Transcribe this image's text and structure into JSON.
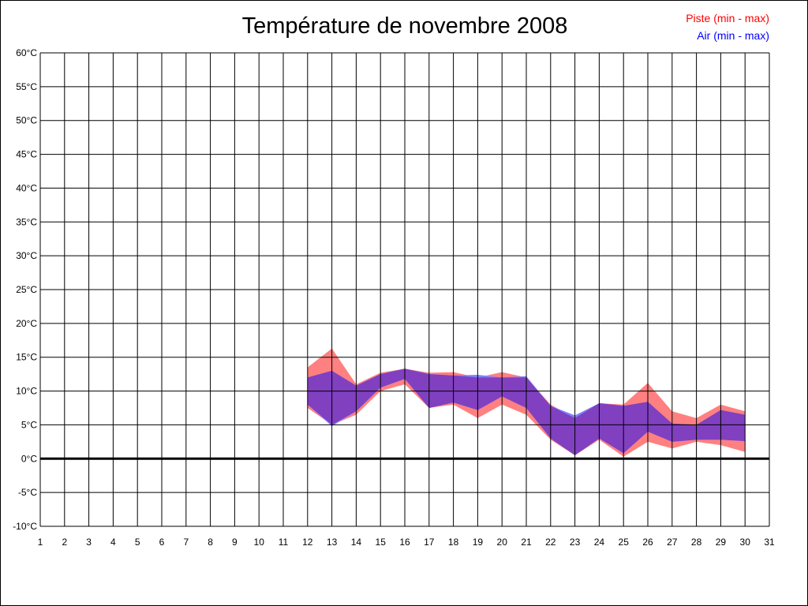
{
  "chart_data": {
    "type": "area",
    "title": "Température de novembre 2008",
    "xlabel": "",
    "ylabel": "",
    "x": [
      1,
      2,
      3,
      4,
      5,
      6,
      7,
      8,
      9,
      10,
      11,
      12,
      13,
      14,
      15,
      16,
      17,
      18,
      19,
      20,
      21,
      22,
      23,
      24,
      25,
      26,
      27,
      28,
      29,
      30,
      31
    ],
    "x_tick_labels": [
      "1",
      "2",
      "3",
      "4",
      "5",
      "6",
      "7",
      "8",
      "9",
      "10",
      "11",
      "12",
      "13",
      "14",
      "15",
      "16",
      "17",
      "18",
      "19",
      "20",
      "21",
      "22",
      "23",
      "24",
      "25",
      "26",
      "27",
      "28",
      "29",
      "30",
      "31"
    ],
    "ylim": [
      -10,
      60
    ],
    "y_ticks": [
      -10,
      -5,
      0,
      5,
      10,
      15,
      20,
      25,
      30,
      35,
      40,
      45,
      50,
      55,
      60
    ],
    "y_tick_labels": [
      "-10°C",
      "-5°C",
      "0°C",
      "5°C",
      "10°C",
      "15°C",
      "20°C",
      "25°C",
      "30°C",
      "35°C",
      "40°C",
      "45°C",
      "50°C",
      "55°C",
      "60°C"
    ],
    "grid": true,
    "legend_position": "top-right",
    "series": [
      {
        "name": "Piste (min - max)",
        "color": "#ff8080",
        "x": [
          12,
          13,
          14,
          15,
          16,
          17,
          18,
          19,
          20,
          21,
          22,
          23,
          24,
          25,
          26,
          27,
          28,
          29,
          30
        ],
        "min": [
          7.5,
          5.0,
          6.5,
          10.0,
          11.0,
          7.5,
          8.0,
          6.0,
          8.0,
          6.5,
          2.8,
          0.5,
          2.8,
          0.3,
          2.5,
          1.5,
          2.5,
          2.0,
          1.0
        ],
        "max": [
          13.5,
          16.3,
          11.0,
          12.7,
          13.3,
          12.7,
          12.8,
          12.0,
          12.8,
          12.0,
          8.0,
          6.0,
          8.2,
          8.0,
          11.2,
          7.0,
          6.0,
          8.0,
          7.0
        ]
      },
      {
        "name": "Air (min - max)",
        "color": "#8080ff",
        "x": [
          12,
          13,
          14,
          15,
          16,
          17,
          18,
          19,
          20,
          21,
          22,
          23,
          24,
          25,
          26,
          27,
          28,
          29,
          30
        ],
        "min": [
          8.0,
          4.8,
          7.0,
          10.5,
          11.8,
          7.5,
          8.3,
          7.2,
          9.2,
          7.5,
          3.0,
          0.5,
          3.0,
          0.8,
          4.0,
          2.5,
          2.8,
          2.8,
          2.6
        ],
        "max": [
          12.0,
          13.0,
          10.8,
          12.5,
          13.3,
          12.5,
          12.3,
          12.4,
          12.0,
          12.2,
          7.8,
          6.4,
          8.2,
          7.8,
          8.4,
          5.2,
          5.0,
          7.2,
          6.5
        ]
      }
    ],
    "overlap_color": "#8040c0"
  }
}
